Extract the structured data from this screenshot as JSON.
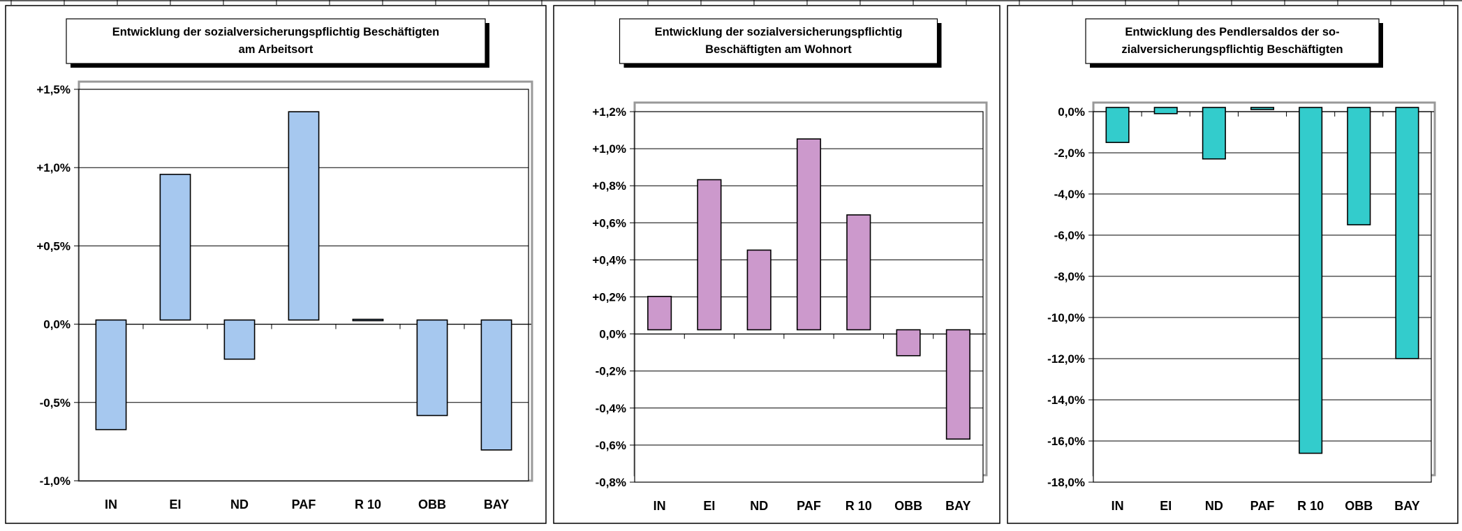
{
  "chart_data": [
    {
      "type": "bar",
      "title": "Entwicklung der sozialversicherungspflichtig Beschäftigten\nam Arbeitsort",
      "categories": [
        "IN",
        "EI",
        "ND",
        "PAF",
        "R 10",
        "OBB",
        "BAY"
      ],
      "values": [
        -0.7,
        0.93,
        -0.25,
        1.33,
        0.0,
        -0.61,
        -0.83
      ],
      "unit": "%",
      "ylim": [
        -1.0,
        1.5
      ],
      "yticks": [
        -1.0,
        -0.5,
        0.0,
        0.5,
        1.0,
        1.5
      ],
      "ytick_labels": [
        "-1,0%",
        "-0,5%",
        "0,0%",
        "+0,5%",
        "+1,0%",
        "+1,5%"
      ],
      "color": "#a6c8ef",
      "grid": true,
      "legend": "none"
    },
    {
      "type": "bar",
      "title": "Entwicklung der sozialversicherungspflichtig\nBeschäftigten am Wohnort",
      "categories": [
        "IN",
        "EI",
        "ND",
        "PAF",
        "R 10",
        "OBB",
        "BAY"
      ],
      "values": [
        0.18,
        0.81,
        0.43,
        1.03,
        0.62,
        -0.14,
        -0.59
      ],
      "unit": "%",
      "ylim": [
        -0.8,
        1.2
      ],
      "yticks": [
        -0.8,
        -0.6,
        -0.4,
        -0.2,
        0.0,
        0.2,
        0.4,
        0.6,
        0.8,
        1.0,
        1.2
      ],
      "ytick_labels": [
        "-0,8%",
        "-0,6%",
        "-0,4%",
        "-0,2%",
        "0,0%",
        "+0,2%",
        "+0,4%",
        "+0,6%",
        "+0,8%",
        "+1,0%",
        "+1,2%"
      ],
      "color": "#cc99cc",
      "grid": true,
      "legend": "none"
    },
    {
      "type": "bar",
      "title": "Entwicklung des Pendlersaldos der so-\nzialversicherungspflichtig Beschäftigten",
      "categories": [
        "IN",
        "EI",
        "ND",
        "PAF",
        "R 10",
        "OBB",
        "BAY"
      ],
      "values": [
        -1.7,
        -0.3,
        -2.5,
        -0.1,
        -16.8,
        -5.7,
        -12.2
      ],
      "unit": "%",
      "ylim": [
        -18.0,
        0.0
      ],
      "yticks": [
        -18,
        -16,
        -14,
        -12,
        -10,
        -8,
        -6,
        -4,
        -2,
        0
      ],
      "ytick_labels": [
        "-18,0%",
        "-16,0%",
        "-14,0%",
        "-12,0%",
        "-10,0%",
        "-8,0%",
        "-6,0%",
        "-4,0%",
        "-2,0%",
        "0,0%"
      ],
      "color": "#33cccc",
      "grid": true,
      "legend": "none"
    }
  ]
}
